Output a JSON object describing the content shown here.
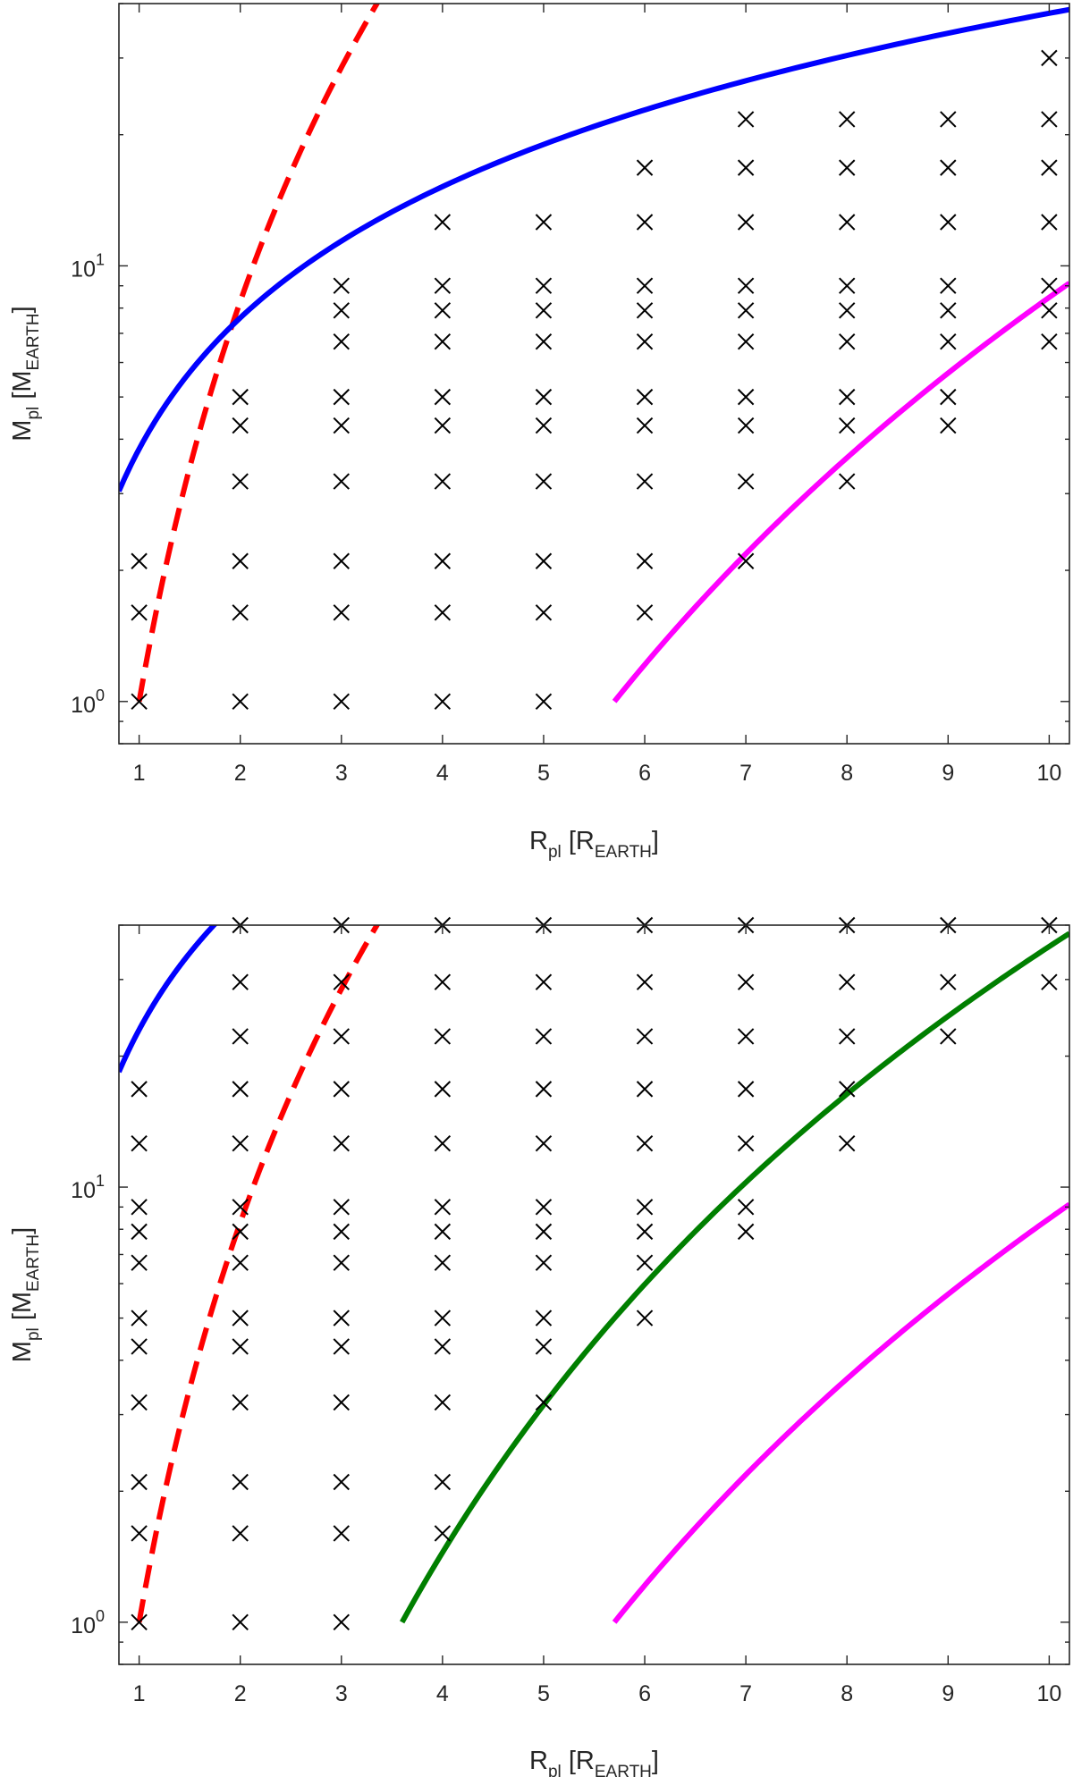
{
  "chart_data": [
    {
      "type": "scatter",
      "panel": "top",
      "xlabel": {
        "main": "R",
        "sub": "pl",
        "bracket_main": "R",
        "bracket_sub": "EARTH"
      },
      "ylabel": {
        "main": "M",
        "sub": "pl",
        "bracket_main": "M",
        "bracket_sub": "EARTH"
      },
      "xlim": [
        0.8,
        10.2
      ],
      "ylim": [
        0.8,
        40
      ],
      "yscale": "log",
      "xticks": [
        1,
        2,
        3,
        4,
        5,
        6,
        7,
        8,
        9,
        10
      ],
      "xtick_labels": [
        "1",
        "2",
        "3",
        "4",
        "5",
        "6",
        "7",
        "8",
        "9",
        "10"
      ],
      "yticks": [
        1,
        10
      ],
      "ytick_labels": [
        {
          "base": "10",
          "exp": "0"
        },
        {
          "base": "10",
          "exp": "1"
        }
      ],
      "mass_levels": [
        1,
        1.6,
        2.1,
        3.2,
        4.3,
        5,
        6.7,
        7.9,
        9,
        12.6,
        16.8,
        21.7,
        30
      ],
      "markers": [
        {
          "x": 1,
          "y": [
            1,
            1.6,
            2.1
          ]
        },
        {
          "x": 2,
          "y": [
            1,
            1.6,
            2.1,
            3.2,
            4.3,
            5
          ]
        },
        {
          "x": 3,
          "y": [
            1,
            1.6,
            2.1,
            3.2,
            4.3,
            5,
            6.7,
            7.9,
            9
          ]
        },
        {
          "x": 4,
          "y": [
            1,
            1.6,
            2.1,
            3.2,
            4.3,
            5,
            6.7,
            7.9,
            9,
            12.6
          ]
        },
        {
          "x": 5,
          "y": [
            1,
            1.6,
            2.1,
            3.2,
            4.3,
            5,
            6.7,
            7.9,
            9,
            12.6
          ]
        },
        {
          "x": 6,
          "y": [
            1.6,
            2.1,
            3.2,
            4.3,
            5,
            6.7,
            7.9,
            9,
            12.6,
            16.8
          ]
        },
        {
          "x": 7,
          "y": [
            2.1,
            3.2,
            4.3,
            5,
            6.7,
            7.9,
            9,
            12.6,
            16.8,
            21.7
          ]
        },
        {
          "x": 8,
          "y": [
            3.2,
            4.3,
            5,
            6.7,
            7.9,
            9,
            12.6,
            16.8,
            21.7
          ]
        },
        {
          "x": 9,
          "y": [
            4.3,
            5,
            6.7,
            7.9,
            9,
            12.6,
            16.8,
            21.7
          ]
        },
        {
          "x": 10,
          "y": [
            6.7,
            7.9,
            9,
            12.6,
            16.8,
            21.7,
            30
          ]
        }
      ],
      "curves": [
        {
          "name": "red-dashed",
          "color": "#ff0000",
          "dash": true,
          "a": 1.0,
          "b": 1.0,
          "p": 3.05,
          "x_start": 1.0,
          "x_end": 3.45
        },
        {
          "name": "blue",
          "color": "#0000ff",
          "dash": false,
          "a": 3.8,
          "b": 1.0,
          "p": 1.0,
          "x_start": 0.8,
          "x_end": 10.2
        },
        {
          "name": "magenta",
          "color": "#ff00ff",
          "dash": false,
          "a": 1.0,
          "b": 5.7,
          "p": 3.8,
          "x_start": 5.7,
          "x_end": 10.2
        }
      ]
    },
    {
      "type": "scatter",
      "panel": "bottom",
      "xlabel": {
        "main": "R",
        "sub": "pl",
        "bracket_main": "R",
        "bracket_sub": "EARTH"
      },
      "ylabel": {
        "main": "M",
        "sub": "pl",
        "bracket_main": "M",
        "bracket_sub": "EARTH"
      },
      "xlim": [
        0.8,
        10.2
      ],
      "ylim": [
        0.8,
        40
      ],
      "yscale": "log",
      "xticks": [
        1,
        2,
        3,
        4,
        5,
        6,
        7,
        8,
        9,
        10
      ],
      "xtick_labels": [
        "1",
        "2",
        "3",
        "4",
        "5",
        "6",
        "7",
        "8",
        "9",
        "10"
      ],
      "yticks": [
        1,
        10
      ],
      "ytick_labels": [
        {
          "base": "10",
          "exp": "0"
        },
        {
          "base": "10",
          "exp": "1"
        }
      ],
      "mass_levels": [
        1,
        1.6,
        2.1,
        3.2,
        4.3,
        5,
        6.7,
        7.9,
        9,
        12.6,
        16.8,
        22.2,
        29.6,
        40
      ],
      "markers": [
        {
          "x": 1,
          "y": [
            1,
            1.6,
            2.1,
            3.2,
            4.3,
            5,
            6.7,
            7.9,
            9,
            12.6,
            16.8
          ]
        },
        {
          "x": 2,
          "y": [
            1,
            1.6,
            2.1,
            3.2,
            4.3,
            5,
            6.7,
            7.9,
            9,
            12.6,
            16.8,
            22.2,
            29.6,
            40
          ]
        },
        {
          "x": 3,
          "y": [
            1,
            1.6,
            2.1,
            3.2,
            4.3,
            5,
            6.7,
            7.9,
            9,
            12.6,
            16.8,
            22.2,
            29.6,
            40
          ]
        },
        {
          "x": 4,
          "y": [
            1.6,
            2.1,
            3.2,
            4.3,
            5,
            6.7,
            7.9,
            9,
            12.6,
            16.8,
            22.2,
            29.6,
            40
          ]
        },
        {
          "x": 5,
          "y": [
            3.2,
            4.3,
            5,
            6.7,
            7.9,
            9,
            12.6,
            16.8,
            22.2,
            29.6,
            40
          ]
        },
        {
          "x": 6,
          "y": [
            5,
            6.7,
            7.9,
            9,
            12.6,
            16.8,
            22.2,
            29.6,
            40
          ]
        },
        {
          "x": 7,
          "y": [
            7.9,
            9,
            12.6,
            16.8,
            22.2,
            29.6,
            40
          ]
        },
        {
          "x": 8,
          "y": [
            12.6,
            16.8,
            22.2,
            29.6,
            40
          ]
        },
        {
          "x": 9,
          "y": [
            22.2,
            29.6,
            40
          ]
        },
        {
          "x": 10,
          "y": [
            29.6,
            40
          ]
        }
      ],
      "curves": [
        {
          "name": "red-dashed",
          "color": "#ff0000",
          "dash": true,
          "a": 1.0,
          "b": 1.0,
          "p": 3.05,
          "x_start": 1.0,
          "x_end": 3.45
        },
        {
          "name": "blue",
          "color": "#0000ff",
          "dash": false,
          "a": 23.0,
          "b": 1.0,
          "p": 1.0,
          "x_start": 0.8,
          "x_end": 1.9
        },
        {
          "name": "green",
          "color": "#007f00",
          "dash": false,
          "a": 1.0,
          "b": 3.6,
          "p": 3.5,
          "x_start": 3.6,
          "x_end": 10.2
        },
        {
          "name": "magenta",
          "color": "#ff00ff",
          "dash": false,
          "a": 1.0,
          "b": 5.7,
          "p": 3.8,
          "x_start": 5.7,
          "x_end": 10.2
        }
      ]
    }
  ]
}
